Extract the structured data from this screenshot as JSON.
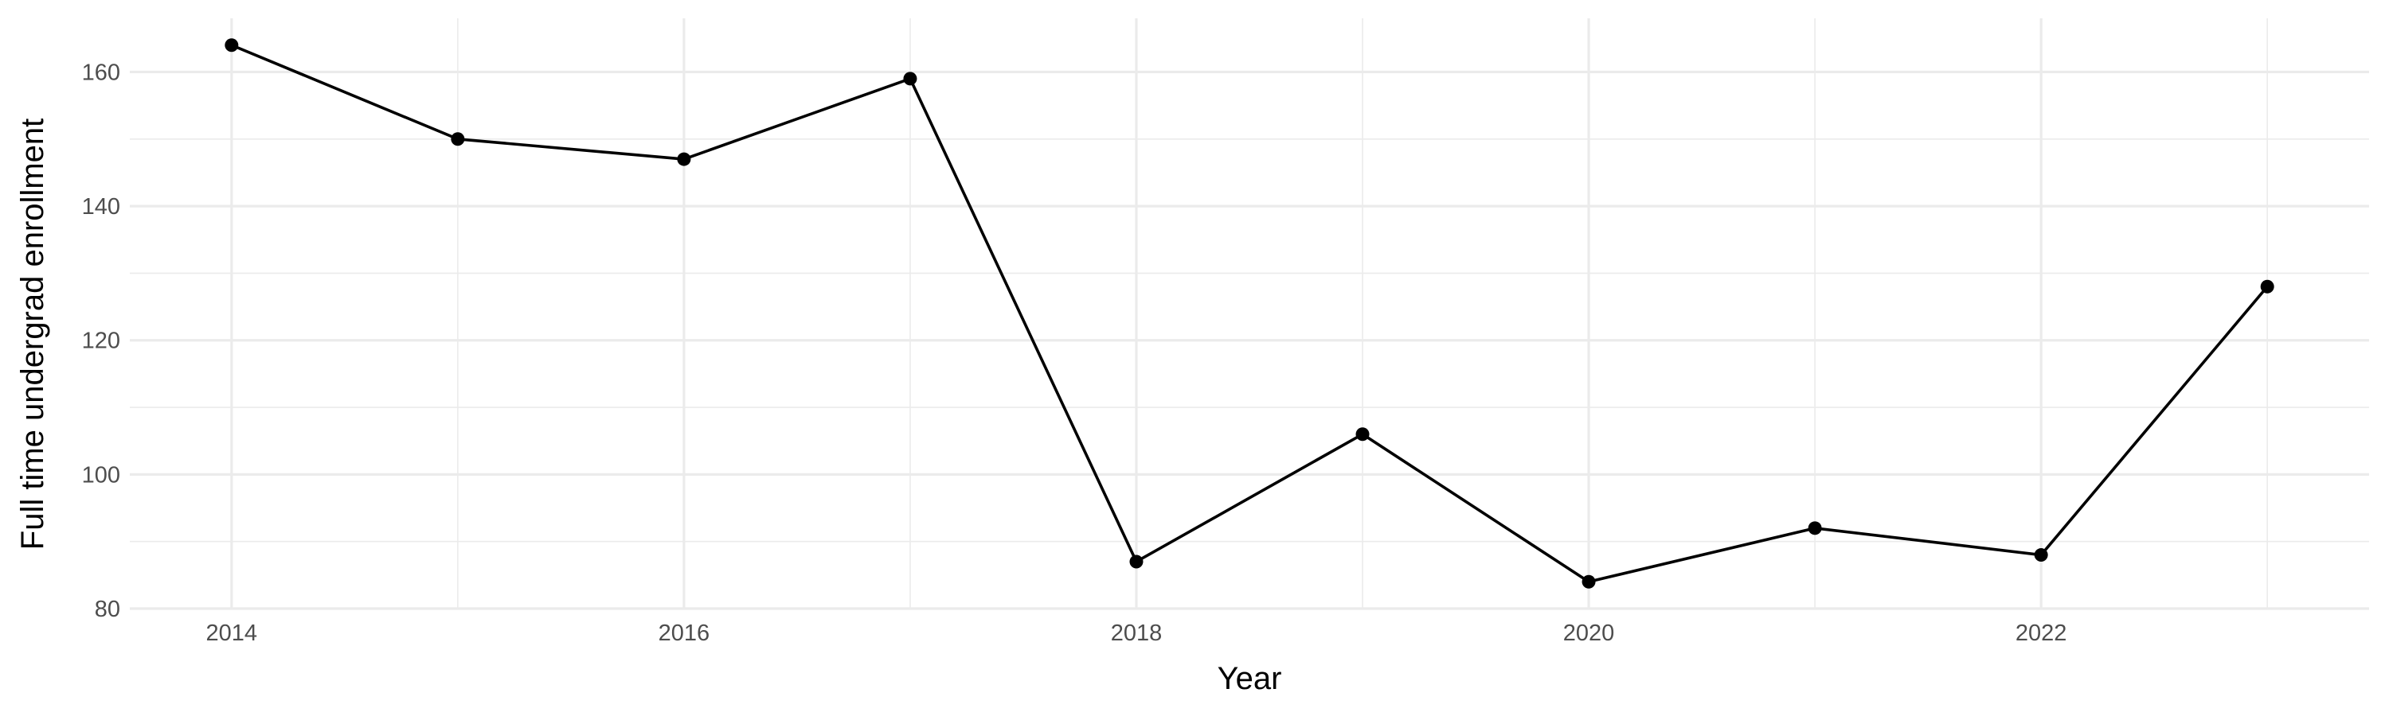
{
  "chart_data": {
    "type": "line",
    "title": "",
    "xlabel": "Year",
    "ylabel": "Full time undergrad enrollment",
    "x": [
      2014,
      2015,
      2016,
      2017,
      2018,
      2019,
      2020,
      2021,
      2022,
      2023
    ],
    "series": [
      {
        "values": [
          164,
          150,
          147,
          159,
          87,
          106,
          84,
          92,
          88,
          128
        ]
      }
    ],
    "xlim": [
      2013.55,
      2023.45
    ],
    "ylim": [
      80,
      168
    ],
    "x_ticks": [
      "2014",
      "2016",
      "2018",
      "2020",
      "2022"
    ],
    "y_ticks": [
      "80",
      "100",
      "120",
      "140",
      "160"
    ],
    "grid": true,
    "legend": "none",
    "colors": {
      "line": "#000000",
      "point": "#000000",
      "grid": "#ebebeb",
      "tick_text": "#4d4d4d"
    }
  }
}
